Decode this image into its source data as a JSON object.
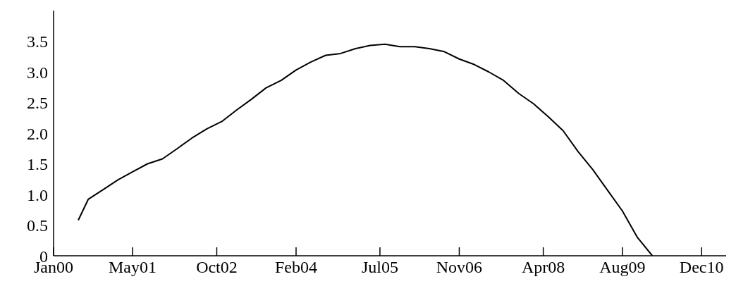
{
  "chart_data": {
    "type": "line",
    "x": [
      "2000-06",
      "2000-08",
      "2000-11",
      "2001-02",
      "2001-05",
      "2001-08",
      "2001-11",
      "2002-02",
      "2002-05",
      "2002-08",
      "2002-11",
      "2003-02",
      "2003-05",
      "2003-08",
      "2003-11",
      "2004-02",
      "2004-05",
      "2004-08",
      "2004-11",
      "2005-02",
      "2005-05",
      "2005-08",
      "2005-11",
      "2006-02",
      "2006-05",
      "2006-08",
      "2006-11",
      "2007-02",
      "2007-05",
      "2007-08",
      "2007-11",
      "2008-02",
      "2008-05",
      "2008-08",
      "2008-11",
      "2009-02",
      "2009-05",
      "2009-08",
      "2009-11",
      "2010-02"
    ],
    "values": [
      0.58,
      0.92,
      1.08,
      1.24,
      1.37,
      1.5,
      1.58,
      1.75,
      1.92,
      2.07,
      2.19,
      2.38,
      2.55,
      2.74,
      2.86,
      3.03,
      3.16,
      3.27,
      3.3,
      3.38,
      3.43,
      3.45,
      3.41,
      3.41,
      3.38,
      3.33,
      3.21,
      3.12,
      3.0,
      2.86,
      2.65,
      2.48,
      2.27,
      2.04,
      1.7,
      1.4,
      1.07,
      0.73,
      0.3,
      0.0
    ],
    "color": "#000000",
    "xlim": [
      "2000-01",
      "2011-05"
    ],
    "xticks": [
      {
        "value": "2000-01",
        "label": "Jan00"
      },
      {
        "value": "2001-05",
        "label": "May01"
      },
      {
        "value": "2002-10",
        "label": "Oct02"
      },
      {
        "value": "2004-02",
        "label": "Feb04"
      },
      {
        "value": "2005-07",
        "label": "Jul05"
      },
      {
        "value": "2006-11",
        "label": "Nov06"
      },
      {
        "value": "2008-04",
        "label": "Apr08"
      },
      {
        "value": "2009-08",
        "label": "Aug09"
      },
      {
        "value": "2010-12",
        "label": "Dec10"
      }
    ],
    "ylim": [
      0,
      4
    ],
    "yticks": [
      0,
      {
        "value": 0.5,
        "label": "0.5"
      },
      {
        "value": 1,
        "label": "1.0"
      },
      {
        "value": 1.5,
        "label": "1.5"
      },
      {
        "value": 2,
        "label": "2.0"
      },
      {
        "value": 2.5,
        "label": "2.5"
      },
      {
        "value": 3,
        "label": "3.0"
      },
      {
        "value": 3.5,
        "label": "3.5"
      }
    ],
    "grid": false,
    "marker": "none",
    "line_style": "solid"
  }
}
